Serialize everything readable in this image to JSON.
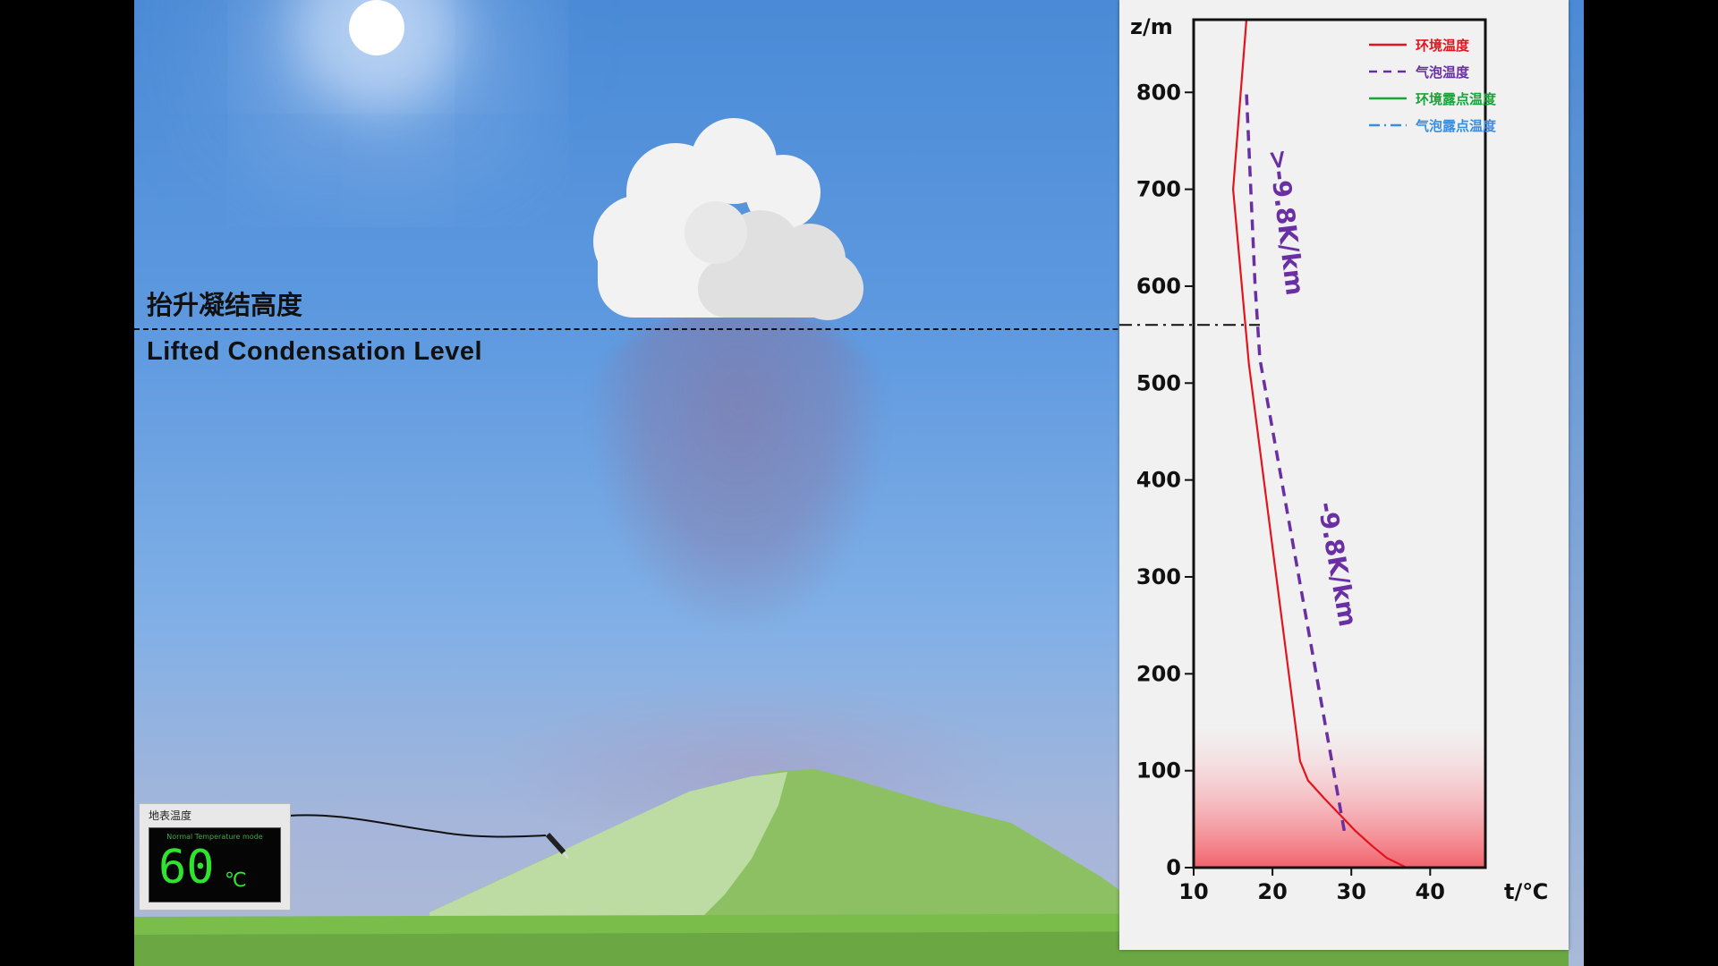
{
  "scene": {
    "lcl_label_cn": "抬升凝结高度",
    "lcl_label_en": "Lifted Condensation Level"
  },
  "thermometer": {
    "title": "地表温度",
    "mode_text": "Normal Temperature mode",
    "value": "60",
    "unit": "℃"
  },
  "colors": {
    "env_temp": "#e3141d",
    "parcel_temp": "#6a2fa3",
    "env_dew": "#19a33a",
    "parcel_dew": "#3a8ee0"
  },
  "chart_data": {
    "type": "line",
    "xlabel": "t/℃",
    "ylabel": "z/m",
    "xlim": [
      10,
      47
    ],
    "ylim": [
      0,
      875
    ],
    "x_ticks": [
      10,
      20,
      30,
      40
    ],
    "y_ticks": [
      0,
      100,
      200,
      300,
      400,
      500,
      600,
      700,
      800
    ],
    "legend": [
      {
        "label": "环境温度",
        "style": "solid",
        "color": "#e3141d"
      },
      {
        "label": "气泡温度",
        "style": "dashed",
        "color": "#6a2fa3"
      },
      {
        "label": "环境露点温度",
        "style": "solid",
        "color": "#19a33a"
      },
      {
        "label": "气泡露点温度",
        "style": "dashdot",
        "color": "#3a8ee0"
      }
    ],
    "legend_position": "top-right",
    "series": [
      {
        "name": "环境温度",
        "points": [
          [
            47,
            0
          ],
          [
            37,
            0
          ],
          [
            34.5,
            10
          ],
          [
            32.7,
            22
          ],
          [
            30.5,
            38
          ],
          [
            28.5,
            55
          ],
          [
            26.5,
            72
          ],
          [
            24.5,
            90
          ],
          [
            23.5,
            110
          ],
          [
            17,
            520
          ],
          [
            15,
            700
          ],
          [
            16.7,
            875
          ]
        ]
      },
      {
        "name": "气泡温度",
        "points": [
          [
            29.1,
            38
          ],
          [
            18.4,
            525
          ],
          [
            17.8,
            600
          ],
          [
            16.7,
            800
          ]
        ]
      }
    ],
    "annotations": [
      {
        "text": ">-9.8K/km",
        "near_z": 690
      },
      {
        "text": "-9.8K/km",
        "near_z": 340
      }
    ],
    "lcl_height": 560,
    "warm_surface_band": [
      0,
      150
    ]
  }
}
